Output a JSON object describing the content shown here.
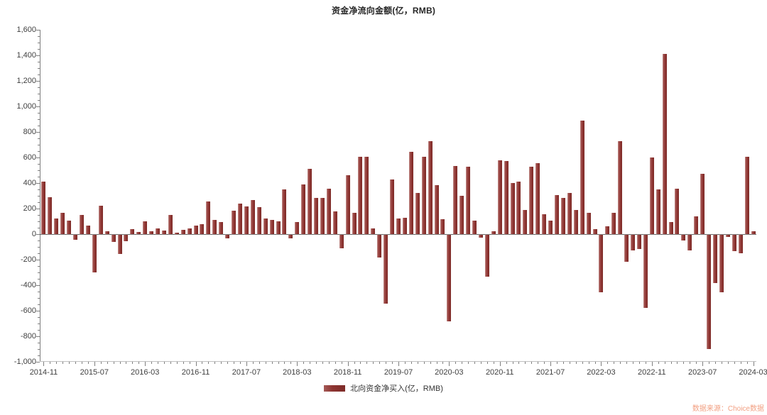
{
  "title": "资金净流向金额(亿，RMB)",
  "legend": {
    "label": "北向资金净买入(亿，RMB)"
  },
  "watermark": "数据来源：Choice数据",
  "colors": {
    "bar": "#8e3532",
    "bar_highlight": "#c08e8b",
    "axis": "#7f7f7f",
    "zero_line": "#595959",
    "tick_text": "#404040",
    "title_text": "#262626",
    "watermark_text": "#f2a083",
    "background": "#ffffff"
  },
  "chart_data": {
    "type": "bar",
    "title": "资金净流向金额(亿，RMB)",
    "series_name": "北向资金净买入(亿，RMB)",
    "xlabel": "",
    "ylabel": "",
    "ylim": [
      -1000,
      1600
    ],
    "ytick_step": 200,
    "ytick_minor_step": 50,
    "grid": false,
    "legend_position": "bottom",
    "xtick_labels": [
      "2014-11",
      "2015-07",
      "2016-03",
      "2016-11",
      "2017-07",
      "2018-03",
      "2018-11",
      "2019-07",
      "2020-03",
      "2020-11",
      "2021-07",
      "2022-03",
      "2022-11",
      "2023-07",
      "2024-03"
    ],
    "xtick_label_every": 8,
    "x": [
      "2014-11",
      "2014-12",
      "2015-01",
      "2015-02",
      "2015-03",
      "2015-04",
      "2015-05",
      "2015-06",
      "2015-07",
      "2015-08",
      "2015-09",
      "2015-10",
      "2015-11",
      "2015-12",
      "2016-01",
      "2016-02",
      "2016-03",
      "2016-04",
      "2016-05",
      "2016-06",
      "2016-07",
      "2016-08",
      "2016-09",
      "2016-10",
      "2016-11",
      "2016-12",
      "2017-01",
      "2017-02",
      "2017-03",
      "2017-04",
      "2017-05",
      "2017-06",
      "2017-07",
      "2017-08",
      "2017-09",
      "2017-10",
      "2017-11",
      "2017-12",
      "2018-01",
      "2018-02",
      "2018-03",
      "2018-04",
      "2018-05",
      "2018-06",
      "2018-07",
      "2018-08",
      "2018-09",
      "2018-10",
      "2018-11",
      "2018-12",
      "2019-01",
      "2019-02",
      "2019-03",
      "2019-04",
      "2019-05",
      "2019-06",
      "2019-07",
      "2019-08",
      "2019-09",
      "2019-10",
      "2019-11",
      "2019-12",
      "2020-01",
      "2020-02",
      "2020-03",
      "2020-04",
      "2020-05",
      "2020-06",
      "2020-07",
      "2020-08",
      "2020-09",
      "2020-10",
      "2020-11",
      "2020-12",
      "2021-01",
      "2021-02",
      "2021-03",
      "2021-04",
      "2021-05",
      "2021-06",
      "2021-07",
      "2021-08",
      "2021-09",
      "2021-10",
      "2021-11",
      "2021-12",
      "2022-01",
      "2022-02",
      "2022-03",
      "2022-04",
      "2022-05",
      "2022-06",
      "2022-07",
      "2022-08",
      "2022-09",
      "2022-10",
      "2022-11",
      "2022-12",
      "2023-01",
      "2023-02",
      "2023-03",
      "2023-04",
      "2023-05",
      "2023-06",
      "2023-07",
      "2023-08",
      "2023-09",
      "2023-10",
      "2023-11",
      "2023-12",
      "2024-01",
      "2024-02",
      "2024-03"
    ],
    "values": [
      411,
      287,
      120,
      167,
      106,
      -37,
      148,
      65,
      -296,
      222,
      22,
      -56,
      -148,
      -52,
      41,
      15,
      100,
      25,
      45,
      30,
      150,
      10,
      35,
      45,
      68,
      78,
      255,
      110,
      95,
      -30,
      185,
      240,
      215,
      265,
      210,
      125,
      110,
      102,
      351,
      -26,
      97,
      387,
      509,
      285,
      285,
      355,
      177,
      -105,
      462,
      166,
      607,
      604,
      44,
      -180,
      -537,
      426,
      121,
      130,
      647,
      320,
      604,
      730,
      385,
      116,
      -679,
      533,
      301,
      527,
      104,
      -21,
      -328,
      20,
      579,
      572,
      400,
      412,
      187,
      526,
      558,
      154,
      108,
      305,
      284,
      325,
      189,
      890,
      168,
      40,
      -451,
      63,
      169,
      730,
      -211,
      -121,
      -112,
      -573,
      601,
      350,
      1413,
      93,
      354,
      -46,
      -121,
      140,
      470,
      -897,
      -375,
      -448,
      -18,
      -129,
      -145,
      607,
      22
    ]
  }
}
